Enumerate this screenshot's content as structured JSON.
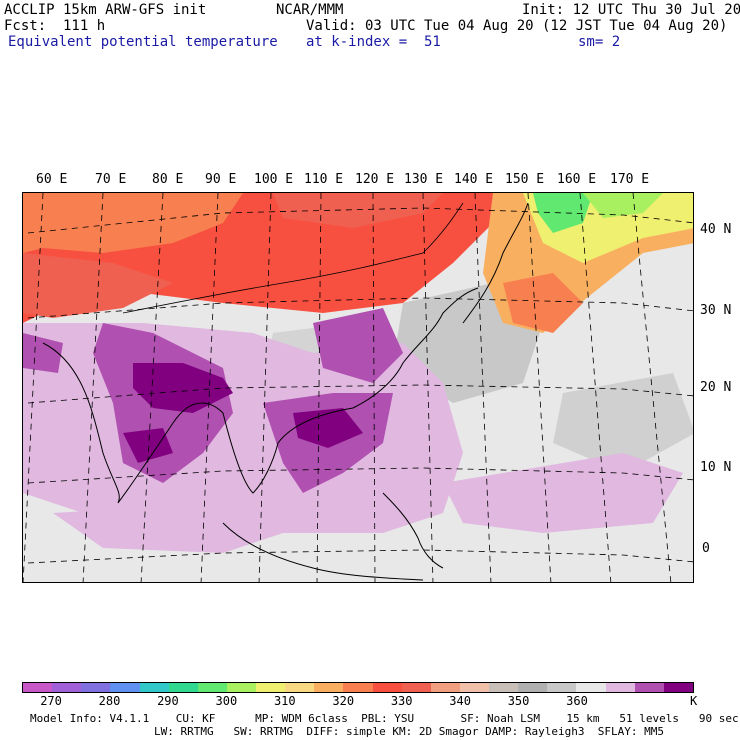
{
  "header": {
    "model": "ACCLIP 15km ARW-GFS init",
    "forecast": "Fcst:  111 h",
    "field": "Equivalent potential temperature",
    "institution": "NCAR/MMM",
    "init": "Init: 12 UTC Thu 30 Jul 20",
    "valid": "Valid: 03 UTC Tue 04 Aug 20 (12 JST Tue 04 Aug 20)",
    "level": "at k-index =  51",
    "smoothing": "sm= 2"
  },
  "map": {
    "lon_labels": [
      "60 E",
      "70 E",
      "80 E",
      "90 E",
      "100 E",
      "110 E",
      "120 E",
      "130 E",
      "140 E",
      "150 E",
      "160 E",
      "170 E"
    ],
    "lat_labels": [
      "40 N",
      "30 N",
      "20 N",
      "10 N",
      "0"
    ]
  },
  "colorbar": {
    "colors": [
      "#c858c8",
      "#a060d8",
      "#8070e0",
      "#6090f0",
      "#30c8c8",
      "#30d890",
      "#60e870",
      "#a8f060",
      "#f0f070",
      "#f8d880",
      "#f8b060",
      "#f88050",
      "#f85040",
      "#f06050",
      "#f0a080",
      "#f0c0a8",
      "#c8c0b8",
      "#b0b0b0",
      "#c8c8c8",
      "#e8e8e8",
      "#e0b8e0",
      "#b050b0",
      "#800080"
    ],
    "ticks": [
      "270",
      "280",
      "290",
      "300",
      "310",
      "320",
      "330",
      "340",
      "350",
      "360"
    ],
    "unit": "K"
  },
  "footer": {
    "line1": "Model Info: V4.1.1    CU: KF      MP: WDM 6class  PBL: YSU       SF: Noah LSM    15 km   51 levels   90 sec",
    "line2": "LW: RRTMG   SW: RRTMG  DIFF: simple KM: 2D Smagor DAMP: Rayleigh3  SFLAY: MM5"
  }
}
